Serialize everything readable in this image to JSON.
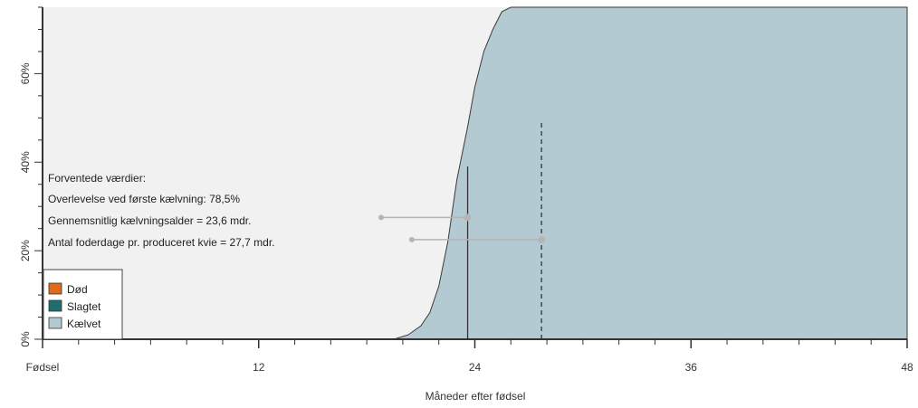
{
  "chart_data": {
    "type": "area",
    "xlabel": "Måneder efter fødsel",
    "ylabel": "",
    "xlim": [
      0,
      48
    ],
    "ylim": [
      0,
      75
    ],
    "x_ticks": [
      {
        "value": 0,
        "label": "Fødsel"
      },
      {
        "value": 12,
        "label": "12"
      },
      {
        "value": 24,
        "label": "24"
      },
      {
        "value": 36,
        "label": "36"
      },
      {
        "value": 48,
        "label": "48"
      }
    ],
    "y_ticks": [
      {
        "value": 0,
        "label": "0%"
      },
      {
        "value": 20,
        "label": "20%"
      },
      {
        "value": 40,
        "label": "40%"
      },
      {
        "value": 60,
        "label": "60%"
      }
    ],
    "series": [
      {
        "name": "Kælvet",
        "color": "#b3cad3",
        "x": [
          19.5,
          20.3,
          21.0,
          21.5,
          22.0,
          22.5,
          23.0,
          23.3,
          23.6,
          24.0,
          24.5,
          25.0,
          25.5,
          26.0,
          27.0,
          30.0,
          48.0
        ],
        "y": [
          0,
          1,
          3,
          6,
          12,
          22,
          36,
          42,
          48,
          57,
          65,
          70,
          74,
          78,
          78.5,
          78.5,
          78.5
        ]
      }
    ],
    "legend": {
      "position": "bottom-left",
      "items": [
        {
          "label": "Død",
          "color": "#e06a1b"
        },
        {
          "label": "Slagtet",
          "color": "#1e6e6e"
        },
        {
          "label": "Kælvet",
          "color": "#b3cad3"
        }
      ]
    },
    "annotations": {
      "title": "Forventede værdier:",
      "lines": [
        "Overlevelse ved første kælvning: 78,5%",
        "Gennemsnitlig kælvningsalder = 23,6 mdr.",
        "Antal foderdage pr. produceret kvie = 27,7 mdr."
      ]
    },
    "markers": [
      {
        "kind": "solid-vline",
        "x": 23.6,
        "y_top": 39
      },
      {
        "kind": "dashed-vline",
        "x": 27.7,
        "y_top": 49
      }
    ],
    "connectors": [
      {
        "x_start": 18.8,
        "x_end": 23.6,
        "y": 27.5
      },
      {
        "x_start": 20.5,
        "x_end": 27.7,
        "y": 22.5
      }
    ],
    "colors": {
      "plot_background": "#f1f1f1",
      "axis": "#333333",
      "marker": "#333333",
      "connector": "#b5b5b5"
    }
  }
}
